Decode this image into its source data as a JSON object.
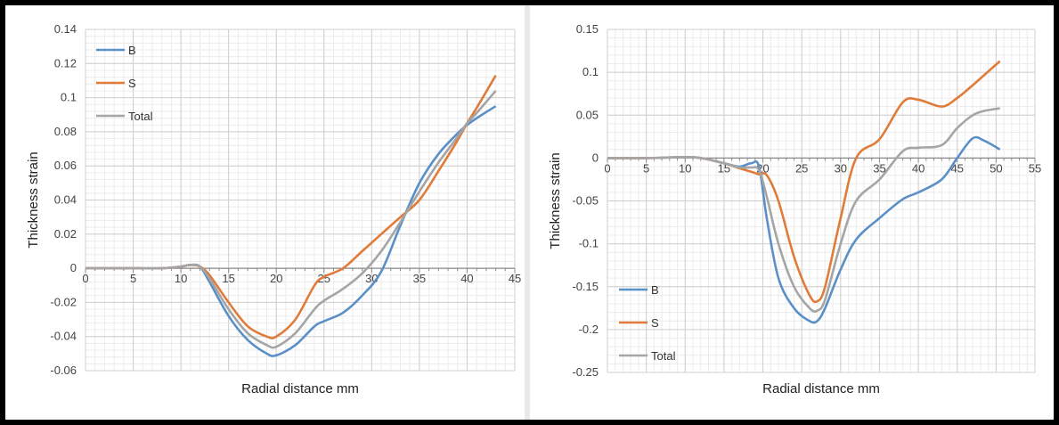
{
  "chart_data": [
    {
      "type": "line",
      "xlabel": "Radial distance mm",
      "ylabel": "Thickness strain",
      "xlim": [
        0,
        45
      ],
      "ylim": [
        -0.06,
        0.14
      ],
      "xticks": [
        0,
        5,
        10,
        15,
        20,
        25,
        30,
        35,
        40,
        45
      ],
      "yticks": [
        -0.06,
        -0.04,
        -0.02,
        0,
        0.02,
        0.04,
        0.06,
        0.08,
        0.1,
        0.12,
        0.14
      ],
      "ytick_labels": [
        "-0.06",
        "-0.04",
        "-0.02",
        "0",
        "0.02",
        "0.04",
        "0.06",
        "0.08",
        "0.1",
        "0.12",
        "0.14"
      ],
      "grid": true,
      "legend_position": "top-left",
      "series": [
        {
          "name": "B",
          "color": "#5b8fc7",
          "x": [
            0,
            5,
            8,
            10,
            11,
            12,
            13,
            15,
            17,
            19,
            20,
            22,
            24,
            25,
            27,
            29,
            31,
            33,
            35,
            37,
            39,
            40,
            41,
            43
          ],
          "y": [
            0,
            0,
            0,
            0.001,
            0.002,
            0.001,
            -0.008,
            -0.028,
            -0.042,
            -0.05,
            -0.051,
            -0.045,
            -0.034,
            -0.031,
            -0.026,
            -0.016,
            -0.002,
            0.025,
            0.05,
            0.067,
            0.079,
            0.084,
            0.088,
            0.095
          ]
        },
        {
          "name": "S",
          "color": "#e07b39",
          "x": [
            0,
            5,
            8,
            10,
            11,
            12,
            13,
            15,
            17,
            19,
            20,
            22,
            24,
            25,
            27,
            29,
            31,
            33,
            35,
            37,
            39,
            40,
            41,
            43
          ],
          "y": [
            0,
            0,
            0,
            0.001,
            0.002,
            0.001,
            -0.004,
            -0.02,
            -0.034,
            -0.04,
            -0.04,
            -0.03,
            -0.01,
            -0.005,
            0,
            0.01,
            0.02,
            0.03,
            0.04,
            0.057,
            0.075,
            0.085,
            0.094,
            0.113
          ]
        },
        {
          "name": "Total",
          "color": "#a5a5a5",
          "x": [
            0,
            5,
            8,
            10,
            11,
            12,
            13,
            15,
            17,
            19,
            20,
            22,
            24,
            25,
            27,
            29,
            31,
            33,
            35,
            37,
            39,
            40,
            41,
            43
          ],
          "y": [
            0,
            0,
            0,
            0.001,
            0.002,
            0.001,
            -0.006,
            -0.024,
            -0.038,
            -0.045,
            -0.046,
            -0.038,
            -0.024,
            -0.019,
            -0.012,
            -0.003,
            0.01,
            0.027,
            0.045,
            0.062,
            0.077,
            0.085,
            0.091,
            0.104
          ]
        }
      ]
    },
    {
      "type": "line",
      "xlabel": "Radial distance mm",
      "ylabel": "Thickness strain",
      "xlim": [
        0,
        55
      ],
      "ylim": [
        -0.25,
        0.15
      ],
      "xticks": [
        0,
        5,
        10,
        15,
        20,
        25,
        30,
        35,
        40,
        45,
        50,
        55
      ],
      "yticks": [
        -0.25,
        -0.2,
        -0.15,
        -0.1,
        -0.05,
        0,
        0.05,
        0.1,
        0.15
      ],
      "ytick_labels": [
        "-0.25",
        "-0.2",
        "-0.15",
        "-0.1",
        "-0.05",
        "0",
        "0.05",
        "0.1",
        "0.15"
      ],
      "grid": true,
      "legend_position": "bottom-left",
      "series": [
        {
          "name": "B",
          "color": "#5b8fc7",
          "x": [
            0,
            5,
            10,
            12,
            15,
            17,
            18.5,
            19.5,
            20.5,
            22,
            24,
            26,
            27,
            28,
            30,
            32,
            35,
            38,
            40,
            43,
            45,
            47,
            48.5,
            50.5
          ],
          "y": [
            0,
            0,
            0.001,
            0,
            -0.006,
            -0.01,
            -0.006,
            -0.01,
            -0.07,
            -0.14,
            -0.175,
            -0.19,
            -0.19,
            -0.175,
            -0.13,
            -0.095,
            -0.07,
            -0.048,
            -0.04,
            -0.025,
            0,
            0.023,
            0.02,
            0.01
          ]
        },
        {
          "name": "S",
          "color": "#e07b39",
          "x": [
            0,
            5,
            10,
            12,
            15,
            17,
            18.5,
            19.5,
            20.5,
            22,
            24,
            26,
            27,
            28,
            30,
            32,
            35,
            38,
            40,
            43,
            45,
            47,
            48.5,
            50.5
          ],
          "y": [
            0,
            0,
            0.001,
            0,
            -0.006,
            -0.012,
            -0.016,
            -0.019,
            -0.02,
            -0.05,
            -0.115,
            -0.16,
            -0.167,
            -0.15,
            -0.07,
            0,
            0.022,
            0.065,
            0.068,
            0.06,
            0.07,
            0.085,
            0.097,
            0.113
          ]
        },
        {
          "name": "Total",
          "color": "#a5a5a5",
          "x": [
            0,
            5,
            10,
            12,
            15,
            17,
            18.5,
            19.5,
            20.5,
            22,
            24,
            26,
            27,
            28,
            30,
            32,
            35,
            38,
            40,
            43,
            45,
            47,
            48.5,
            50.5
          ],
          "y": [
            0,
            0,
            0.001,
            0,
            -0.006,
            -0.011,
            -0.011,
            -0.014,
            -0.045,
            -0.1,
            -0.15,
            -0.175,
            -0.178,
            -0.165,
            -0.1,
            -0.05,
            -0.025,
            0.008,
            0.012,
            0.015,
            0.035,
            0.05,
            0.055,
            0.058
          ]
        }
      ]
    }
  ]
}
